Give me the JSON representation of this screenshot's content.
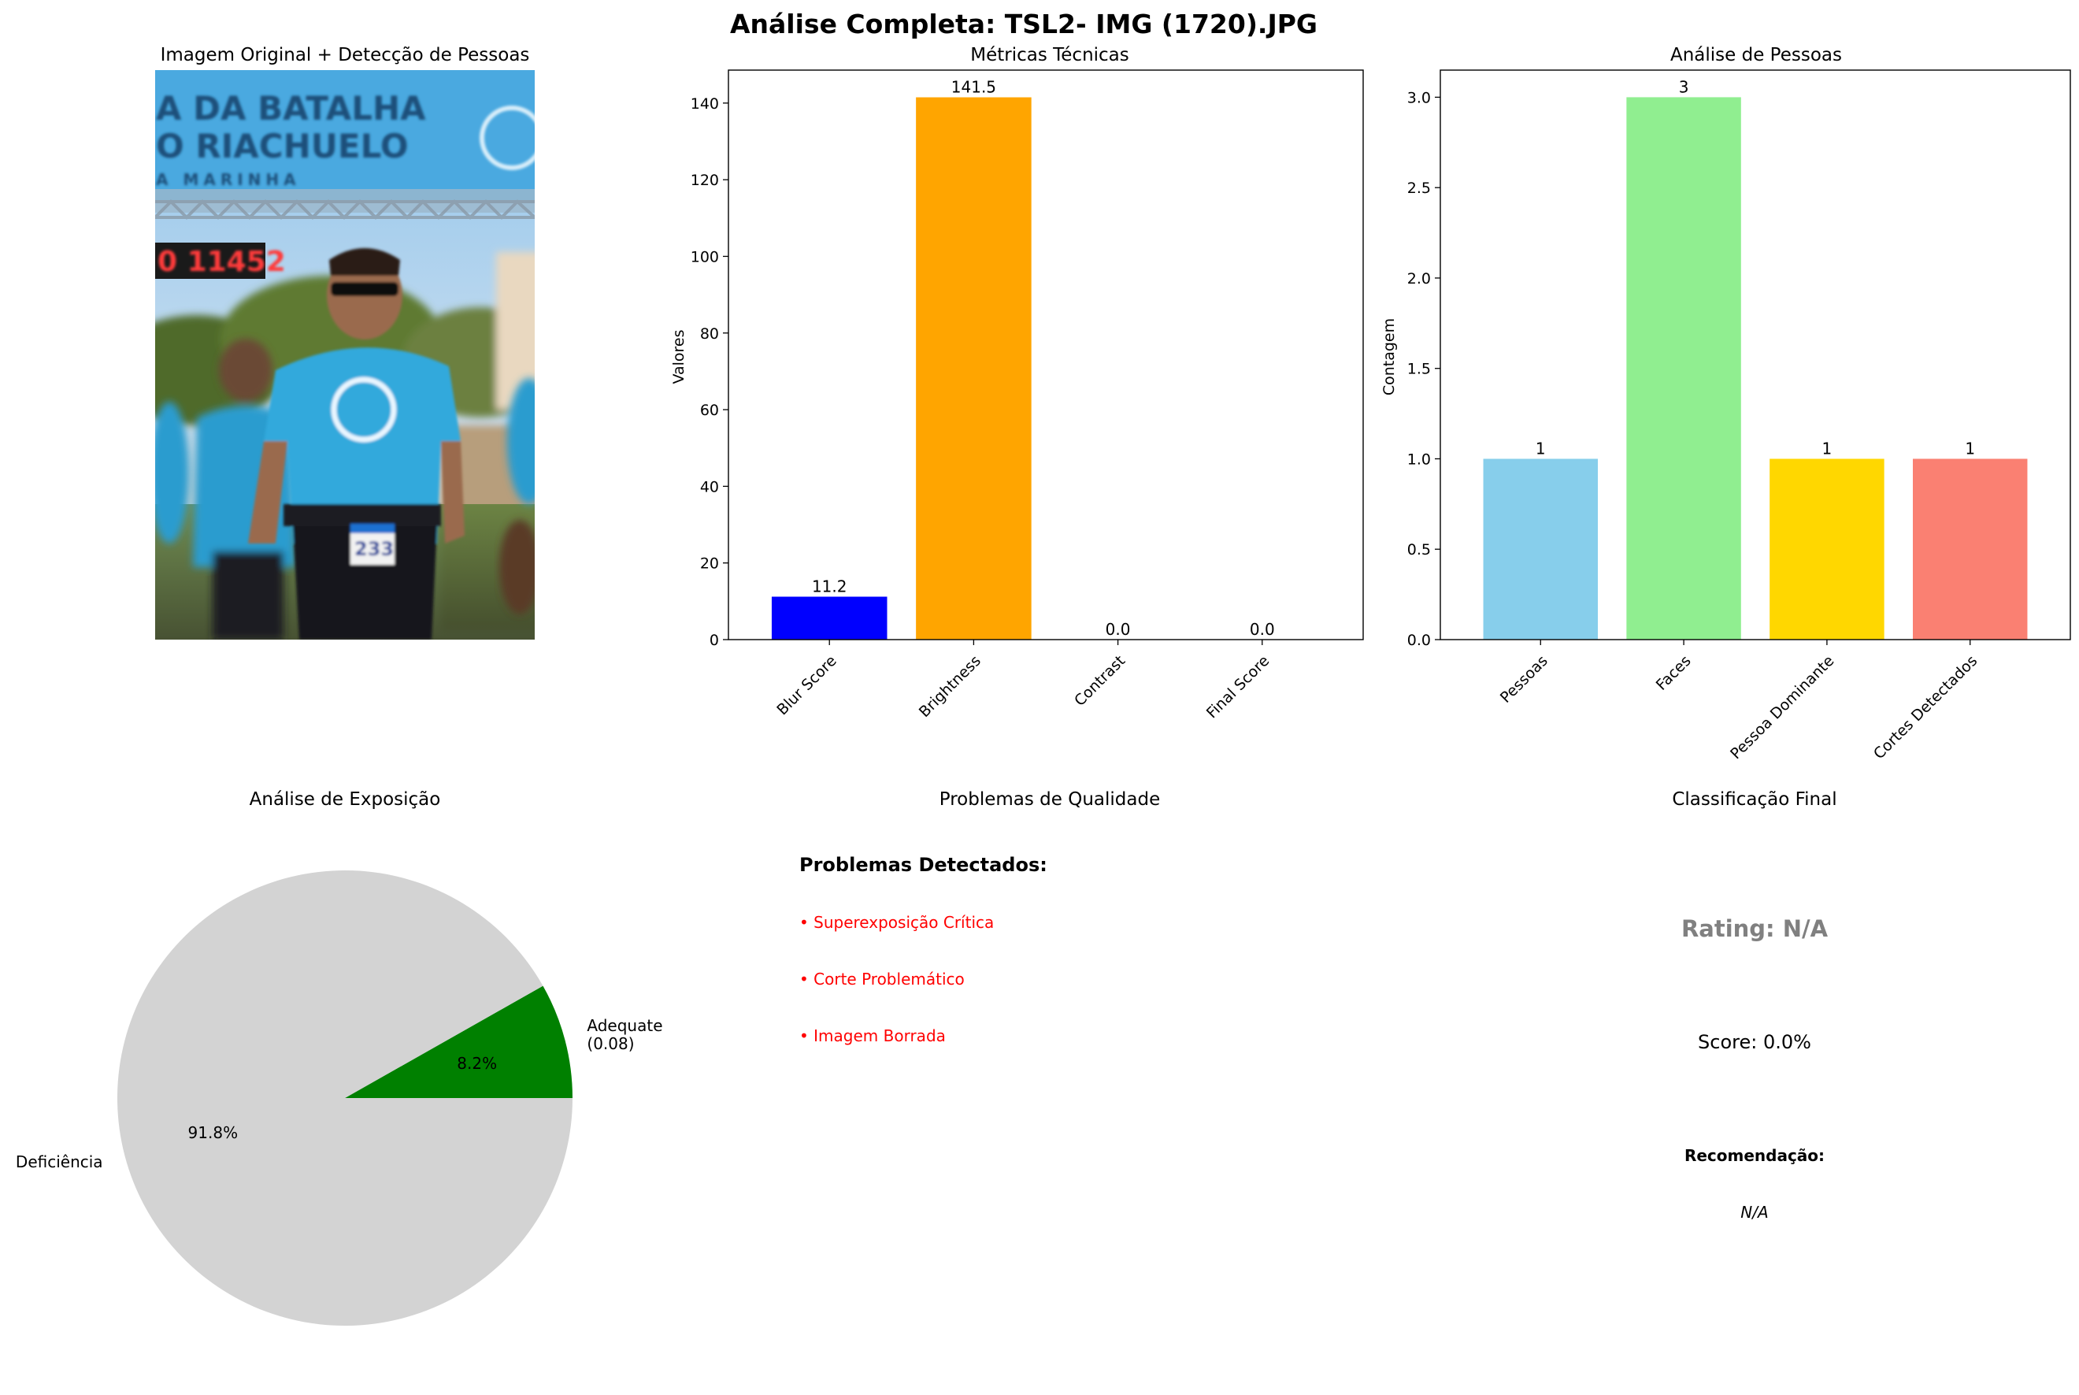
{
  "figure": {
    "suptitle": "Análise Completa: TSL2- IMG  (1720).JPG"
  },
  "photo_panel": {
    "title": "Imagem Original + Detecção de Pessoas",
    "banner_line1": "A DA BATALHA",
    "banner_line2": "O RIACHUELO",
    "banner_line3": "A MARINHA",
    "clock_text": "0 11452",
    "bib_text": "233"
  },
  "chart_data": [
    {
      "type": "bar",
      "title": "Métricas Técnicas",
      "xlabel": "",
      "ylabel": "Valores",
      "categories": [
        "Blur Score",
        "Brightness",
        "Contrast",
        "Final Score"
      ],
      "values": [
        11.2,
        141.5,
        0.0,
        0.0
      ],
      "value_labels": [
        "11.2",
        "141.5",
        "0.0",
        "0.0"
      ],
      "colors": [
        "#0000ff",
        "#ffa500",
        "#d3d3d3",
        "#008000"
      ],
      "ylim": [
        0,
        148.6
      ],
      "yticks": [
        0,
        20,
        40,
        60,
        80,
        100,
        120,
        140
      ]
    },
    {
      "type": "bar",
      "title": "Análise de Pessoas",
      "xlabel": "",
      "ylabel": "Contagem",
      "categories": [
        "Pessoas",
        "Faces",
        "Pessoa Dominante",
        "Cortes Detectados"
      ],
      "values": [
        1,
        3,
        1,
        1
      ],
      "value_labels": [
        "1",
        "3",
        "1",
        "1"
      ],
      "colors": [
        "#87ceeb",
        "#90ee90",
        "#ffd700",
        "#fa8072"
      ],
      "ylim": [
        0,
        3.15
      ],
      "yticks": [
        0,
        0.5,
        1.0,
        1.5,
        2.0,
        2.5,
        3.0
      ],
      "ytick_labels": [
        "0.0",
        "0.5",
        "1.0",
        "1.5",
        "2.0",
        "2.5",
        "3.0"
      ]
    },
    {
      "type": "pie",
      "title": "Análise de Exposição",
      "slices": [
        {
          "label": "Adequate\n(0.08)",
          "value": 8.2,
          "pct_label": "8.2%",
          "color": "#008000"
        },
        {
          "label": "Deficiência",
          "value": 91.8,
          "pct_label": "91.8%",
          "color": "#d3d3d3"
        }
      ]
    }
  ],
  "quality_panel": {
    "title": "Problemas de Qualidade",
    "heading": "Problemas Detectados:",
    "items": [
      "• Superexposição Crítica",
      "• Corte Problemático",
      "• Imagem Borrada"
    ],
    "item_color": "#ff0000"
  },
  "classification_panel": {
    "title": "Classificação Final",
    "rating": "Rating: N/A",
    "rating_color": "#808080",
    "score": "Score: 0.0%",
    "recommendation_label": "Recomendação:",
    "recommendation_value": "N/A"
  }
}
